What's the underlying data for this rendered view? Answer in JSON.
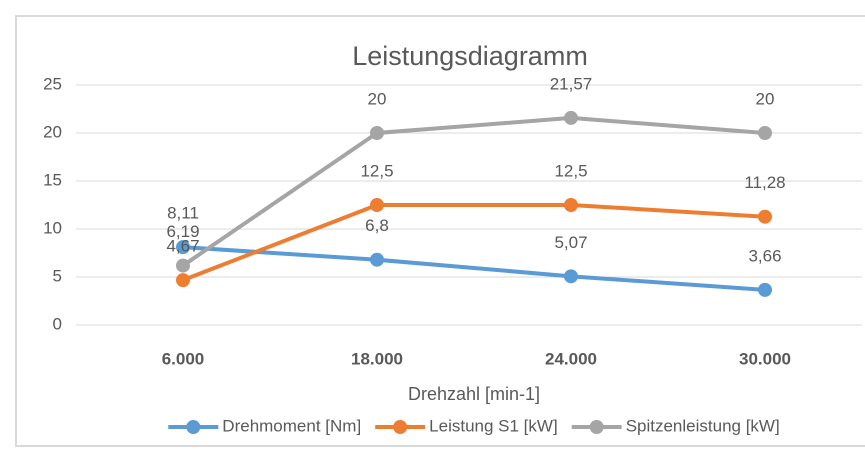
{
  "chart_data": {
    "type": "line",
    "title": "Leistungsdiagramm",
    "x_label": "Drehzahl [min-1]",
    "categories": [
      "6.000",
      "18.000",
      "24.000",
      "30.000"
    ],
    "series": [
      {
        "name": "Drehmoment [Nm]",
        "color": "#5b9bd5",
        "values": [
          8.11,
          6.8,
          5.07,
          3.66
        ],
        "value_labels": [
          "8,11",
          "6,8",
          "5,07",
          "3,66"
        ]
      },
      {
        "name": "Leistung S1 [kW]",
        "color": "#ed7d31",
        "values": [
          4.67,
          12.5,
          12.5,
          11.28
        ],
        "value_labels": [
          "4,67",
          "12,5",
          "12,5",
          "11,28"
        ]
      },
      {
        "name": "Spitzenleistung [kW]",
        "color": "#a5a5a5",
        "values": [
          6.19,
          20,
          21.57,
          20
        ],
        "value_labels": [
          "6,19",
          "20",
          "21,57",
          "20"
        ]
      }
    ],
    "ylim": [
      0,
      25
    ],
    "yticks": [
      0,
      5,
      10,
      15,
      20,
      25
    ],
    "grid": true,
    "legend": "bottom"
  }
}
